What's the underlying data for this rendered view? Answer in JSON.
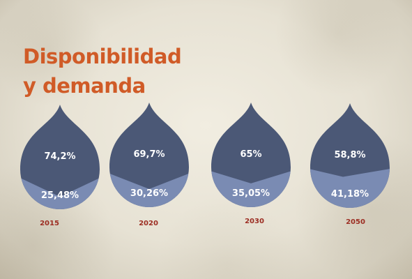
{
  "title": {
    "line1": "Disponibilidad",
    "line2": "y demanda"
  },
  "colors": {
    "title": "#d05b27",
    "drop_top": "#4b5876",
    "drop_bottom": "#7a8bb3",
    "year_label": "#9c2d22"
  },
  "chart_data": {
    "type": "pictograph",
    "categories": [
      "2015",
      "2020",
      "2030",
      "2050"
    ],
    "series": [
      {
        "values": [
          "74,2%",
          "69,7%",
          "65%",
          "58,8%"
        ],
        "numeric": [
          74.2,
          69.7,
          65,
          58.8
        ]
      },
      {
        "values": [
          "25,48%",
          "30,26%",
          "35,05%",
          "41,18%"
        ],
        "numeric": [
          25.48,
          30.26,
          35.05,
          41.18
        ]
      }
    ],
    "title": "Disponibilidad y demanda"
  }
}
